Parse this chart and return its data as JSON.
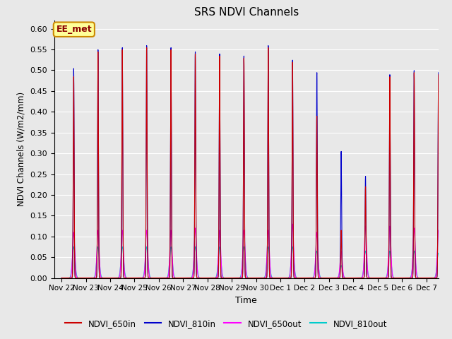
{
  "title": "SRS NDVI Channels",
  "xlabel": "Time",
  "ylabel": "NDVI Channels (W/m2/mm)",
  "ylim": [
    0.0,
    0.62
  ],
  "yticks": [
    0.0,
    0.05,
    0.1,
    0.15,
    0.2,
    0.25,
    0.3,
    0.35,
    0.4,
    0.45,
    0.5,
    0.55,
    0.6
  ],
  "background_color": "#e8e8e8",
  "plot_bg_color": "#e8e8e8",
  "annotation_text": "EE_met",
  "annotation_bg": "#ffff99",
  "annotation_border": "#cc8800",
  "legend_entries": [
    "NDVI_650in",
    "NDVI_810in",
    "NDVI_650out",
    "NDVI_810out"
  ],
  "line_colors": [
    "#cc0000",
    "#0000cc",
    "#ff00ff",
    "#00cccc"
  ],
  "tick_labels": [
    "Nov 22",
    "Nov 23",
    "Nov 24",
    "Nov 25",
    "Nov 26",
    "Nov 27",
    "Nov 28",
    "Nov 29",
    "Nov 30",
    "Dec 1",
    "Dec 2",
    "Dec 3",
    "Dec 4",
    "Dec 5",
    "Dec 6",
    "Dec 7"
  ],
  "day_peaks_810in": [
    0.505,
    0.55,
    0.555,
    0.56,
    0.555,
    0.545,
    0.54,
    0.535,
    0.56,
    0.525,
    0.495,
    0.305,
    0.245,
    0.49,
    0.5,
    0.495
  ],
  "day_peaks_650in": [
    0.485,
    0.545,
    0.55,
    0.555,
    0.55,
    0.54,
    0.535,
    0.53,
    0.555,
    0.52,
    0.39,
    0.115,
    0.22,
    0.485,
    0.495,
    0.49
  ],
  "day_peaks_650out": [
    0.11,
    0.115,
    0.115,
    0.115,
    0.115,
    0.12,
    0.115,
    0.115,
    0.115,
    0.13,
    0.11,
    0.065,
    0.125,
    0.125,
    0.12,
    0.115
  ],
  "day_peaks_810out": [
    0.075,
    0.075,
    0.075,
    0.075,
    0.075,
    0.075,
    0.075,
    0.075,
    0.075,
    0.075,
    0.065,
    0.03,
    0.065,
    0.065,
    0.065,
    0.06
  ],
  "spike_widths": {
    "810in": 0.018,
    "650in": 0.018,
    "650out": 0.045,
    "810out": 0.055
  }
}
